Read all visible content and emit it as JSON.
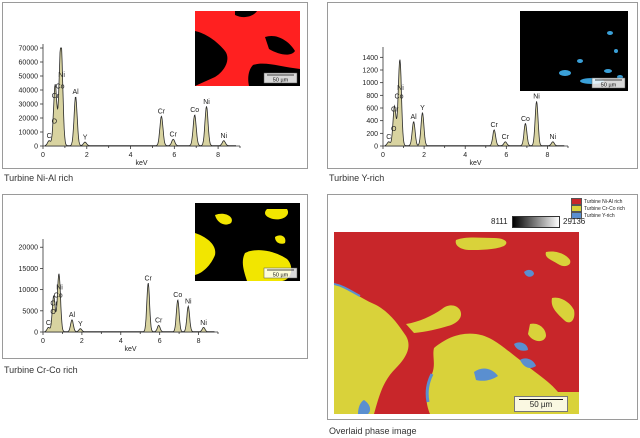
{
  "chart_data": [
    {
      "type": "area",
      "caption": "Turbine Ni-Al rich",
      "xlabel": "keV",
      "xlim": [
        0,
        9
      ],
      "ylim": [
        0,
        70000
      ],
      "x_ticks": [
        "0",
        "2",
        "4",
        "6",
        "8"
      ],
      "y_ticks": [
        "0",
        "10000",
        "20000",
        "30000",
        "40000",
        "50000",
        "60000",
        "70000"
      ],
      "peaks": [
        {
          "label": "C",
          "x": 0.28,
          "y": 3500
        },
        {
          "label": "O",
          "x": 0.52,
          "y": 14000
        },
        {
          "label": "Cr",
          "x": 0.57,
          "y": 32000
        },
        {
          "label": "Co",
          "x": 0.78,
          "y": 39000
        },
        {
          "label": "Ni",
          "x": 0.85,
          "y": 47000
        },
        {
          "label": "Al",
          "x": 1.49,
          "y": 35000
        },
        {
          "label": "Y",
          "x": 1.92,
          "y": 2500
        },
        {
          "label": "Cr",
          "x": 5.41,
          "y": 21000
        },
        {
          "label": "Cr",
          "x": 5.95,
          "y": 4500
        },
        {
          "label": "Co",
          "x": 6.93,
          "y": 22000
        },
        {
          "label": "Ni",
          "x": 7.47,
          "y": 28000
        },
        {
          "label": "Ni",
          "x": 8.26,
          "y": 3500
        }
      ],
      "inset": {
        "scale_label": "50 µm",
        "bg": "#000000",
        "phase": "#ff2020"
      }
    },
    {
      "type": "area",
      "caption": "Turbine Y-rich",
      "xlabel": "keV",
      "xlim": [
        0,
        9
      ],
      "ylim": [
        0,
        1500
      ],
      "x_ticks": [
        "0",
        "2",
        "4",
        "6",
        "8"
      ],
      "y_ticks": [
        "0",
        "200",
        "400",
        "600",
        "800",
        "1000",
        "1200",
        "1400"
      ],
      "peaks": [
        {
          "label": "C",
          "x": 0.28,
          "y": 60
        },
        {
          "label": "O",
          "x": 0.52,
          "y": 150
        },
        {
          "label": "Cr",
          "x": 0.57,
          "y": 500
        },
        {
          "label": "Co",
          "x": 0.78,
          "y": 700
        },
        {
          "label": "Ni",
          "x": 0.85,
          "y": 840
        },
        {
          "label": "Al",
          "x": 1.49,
          "y": 380
        },
        {
          "label": "Y",
          "x": 1.92,
          "y": 520
        },
        {
          "label": "Cr",
          "x": 5.41,
          "y": 250
        },
        {
          "label": "Cr",
          "x": 5.95,
          "y": 60
        },
        {
          "label": "Co",
          "x": 6.93,
          "y": 350
        },
        {
          "label": "Ni",
          "x": 7.47,
          "y": 700
        },
        {
          "label": "Ni",
          "x": 8.26,
          "y": 60
        }
      ],
      "inset": {
        "scale_label": "50 µm",
        "bg": "#000000",
        "phase": "#3aa0d8"
      }
    },
    {
      "type": "area",
      "caption": "Turbine Cr-Co rich",
      "xlabel": "keV",
      "xlim": [
        0,
        9
      ],
      "ylim": [
        0,
        21000
      ],
      "x_ticks": [
        "0",
        "2",
        "4",
        "6",
        "8"
      ],
      "y_ticks": [
        "0",
        "5000",
        "10000",
        "15000",
        "20000"
      ],
      "peaks": [
        {
          "label": "C",
          "x": 0.28,
          "y": 1000
        },
        {
          "label": "O",
          "x": 0.52,
          "y": 3500
        },
        {
          "label": "Cr",
          "x": 0.57,
          "y": 5500
        },
        {
          "label": "Co",
          "x": 0.78,
          "y": 7000
        },
        {
          "label": "Ni",
          "x": 0.85,
          "y": 8500
        },
        {
          "label": "Al",
          "x": 1.49,
          "y": 2800
        },
        {
          "label": "Y",
          "x": 1.92,
          "y": 700
        },
        {
          "label": "Cr",
          "x": 5.41,
          "y": 11500
        },
        {
          "label": "Cr",
          "x": 5.95,
          "y": 1500
        },
        {
          "label": "Co",
          "x": 6.93,
          "y": 7500
        },
        {
          "label": "Ni",
          "x": 7.47,
          "y": 6000
        },
        {
          "label": "Ni",
          "x": 8.26,
          "y": 1000
        }
      ],
      "inset": {
        "scale_label": "50 µm",
        "bg": "#000000",
        "phase": "#f2e600"
      }
    }
  ],
  "overlay": {
    "caption": "Overlaid phase image",
    "colorbar_min": "8111",
    "colorbar_max": "29136",
    "scale_label": "50 µm",
    "legend": [
      {
        "label": "Turbine Ni-Al rich",
        "color": "#c8262a"
      },
      {
        "label": "Turbine Cr-Co rich",
        "color": "#d9d23a"
      },
      {
        "label": "Turbine Y-rich",
        "color": "#5a8fd0"
      }
    ]
  }
}
